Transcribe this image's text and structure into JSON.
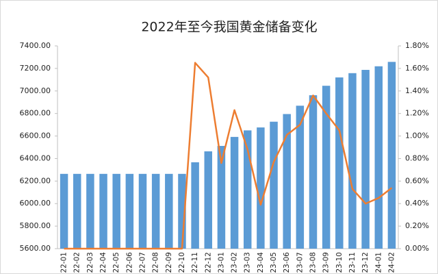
{
  "chart_data": {
    "type": "bar-line",
    "title": "2022年至今我国黄金储备变化",
    "categories": [
      "22-01",
      "22-02",
      "22-03",
      "22-04",
      "22-05",
      "22-06",
      "22-07",
      "22-08",
      "22-09",
      "22-10",
      "22-11",
      "22-12",
      "23-01",
      "23-02",
      "23-03",
      "23-04",
      "23-05",
      "23-06",
      "23-07",
      "23-08",
      "23-09",
      "23-10",
      "23-11",
      "23-12",
      "24-01",
      "24-02"
    ],
    "series": [
      {
        "type": "bar",
        "color": "#5b9bd5",
        "axis": "y",
        "values": [
          6264,
          6264,
          6264,
          6264,
          6264,
          6264,
          6264,
          6264,
          6264,
          6264,
          6367,
          6464,
          6512,
          6592,
          6650,
          6676,
          6727,
          6795,
          6869,
          6962,
          7046,
          7120,
          7158,
          7187,
          7219,
          7258
        ]
      },
      {
        "type": "line",
        "color": "#ed7d31",
        "axis": "y2",
        "values": [
          0,
          0,
          0,
          0,
          0,
          0,
          0,
          0,
          0,
          0,
          1.65,
          1.52,
          0.76,
          1.23,
          0.88,
          0.39,
          0.77,
          1.01,
          1.1,
          1.36,
          1.2,
          1.05,
          0.53,
          0.4,
          0.45,
          0.54
        ]
      }
    ],
    "ylim": [
      5600,
      7400
    ],
    "yticks": [
      {
        "value": 5600,
        "label": "5600.00"
      },
      {
        "value": 5800,
        "label": "5800.00"
      },
      {
        "value": 6000,
        "label": "6000.00"
      },
      {
        "value": 6200,
        "label": "6200.00"
      },
      {
        "value": 6400,
        "label": "6400.00"
      },
      {
        "value": 6600,
        "label": "6600.00"
      },
      {
        "value": 6800,
        "label": "6800.00"
      },
      {
        "value": 7000,
        "label": "7000.00"
      },
      {
        "value": 7200,
        "label": "7200.00"
      },
      {
        "value": 7400,
        "label": "7400.00"
      }
    ],
    "y2lim": [
      0,
      1.8
    ],
    "y2ticks": [
      {
        "value": 0,
        "label": "0.00%"
      },
      {
        "value": 0.2,
        "label": "0.20%"
      },
      {
        "value": 0.4,
        "label": "0.40%"
      },
      {
        "value": 0.6,
        "label": "0.60%"
      },
      {
        "value": 0.8,
        "label": "0.80%"
      },
      {
        "value": 1.0,
        "label": "1.00%"
      },
      {
        "value": 1.2,
        "label": "1.20%"
      },
      {
        "value": 1.4,
        "label": "1.40%"
      },
      {
        "value": 1.6,
        "label": "1.60%"
      },
      {
        "value": 1.8,
        "label": "1.80%"
      }
    ],
    "grid": false
  }
}
